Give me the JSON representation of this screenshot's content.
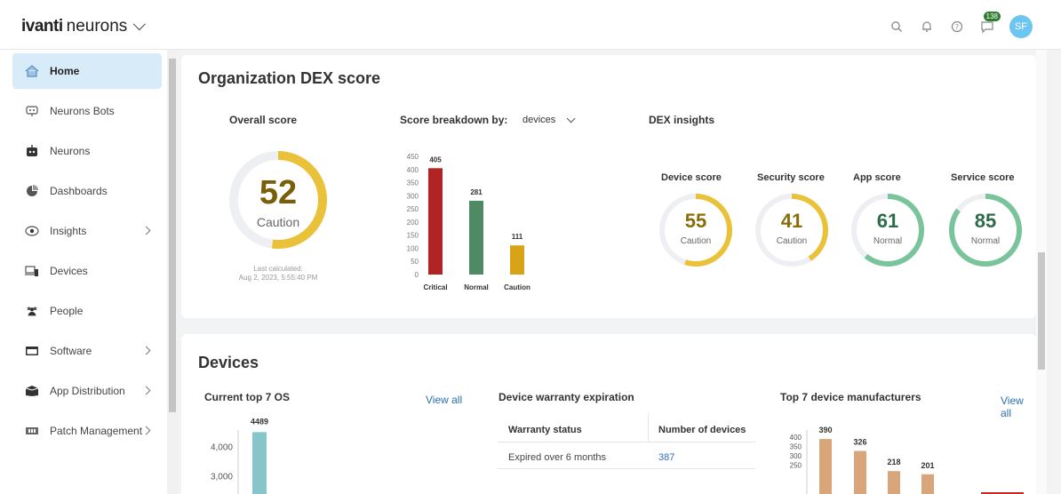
{
  "brand": {
    "bold": "ivanti",
    "rest": "neurons"
  },
  "topbar": {
    "notifications_count": "138",
    "avatar_initials": "SF"
  },
  "sidebar": {
    "items": [
      {
        "label": "Home",
        "icon": "home-icon",
        "active": true
      },
      {
        "label": "Neurons Bots",
        "icon": "bot-icon"
      },
      {
        "label": "Neurons",
        "icon": "robot-icon"
      },
      {
        "label": "Dashboards",
        "icon": "pie-icon"
      },
      {
        "label": "Insights",
        "icon": "eye-icon",
        "expand": true
      },
      {
        "label": "Devices",
        "icon": "devices-icon"
      },
      {
        "label": "People",
        "icon": "people-icon"
      },
      {
        "label": "Software",
        "icon": "software-icon",
        "expand": true
      },
      {
        "label": "App Distribution",
        "icon": "box-icon",
        "expand": true
      },
      {
        "label": "Patch Management",
        "icon": "patch-icon",
        "expand": true
      }
    ]
  },
  "dex": {
    "title": "Organization DEX score",
    "overall": {
      "label": "Overall score",
      "value": "52",
      "status": "Caution",
      "fraction": 0.52,
      "last_calculated_label": "Last calculated:",
      "last_calculated": "Aug 2, 2023, 5:55:40 PM"
    },
    "breakdown": {
      "label": "Score breakdown by:",
      "selected": "devices"
    },
    "insights": {
      "label": "DEX insights",
      "scores": [
        {
          "label": "Device score",
          "value": "55",
          "status": "Caution",
          "fraction": 0.55,
          "color": "#e9c23a",
          "text_color": "#8a6d0b"
        },
        {
          "label": "Security score",
          "value": "41",
          "status": "Caution",
          "fraction": 0.41,
          "color": "#e9c23a",
          "text_color": "#8a6d0b"
        },
        {
          "label": "App score",
          "value": "61",
          "status": "Normal",
          "fraction": 0.61,
          "color": "#79c49a",
          "text_color": "#2e6b49"
        },
        {
          "label": "Service score",
          "value": "85",
          "status": "Normal",
          "fraction": 0.85,
          "color": "#79c49a",
          "text_color": "#2e6b49"
        }
      ]
    }
  },
  "devices": {
    "title": "Devices",
    "top_os": {
      "label": "Current top 7 OS",
      "view_all": "View all"
    },
    "warranty": {
      "label": "Device warranty expiration",
      "headers": [
        "Warranty status",
        "Number of devices"
      ],
      "rows": [
        {
          "status": "Expired over 6 months",
          "count": "387"
        }
      ]
    },
    "manufacturers": {
      "label": "Top 7 device manufacturers",
      "view_all": "View all"
    }
  },
  "chart_data": [
    {
      "type": "bar",
      "categories": [
        "Critical",
        "Normal",
        "Caution"
      ],
      "values": [
        405,
        281,
        111
      ],
      "colors": [
        "#b22424",
        "#4e8a64",
        "#d9a317"
      ],
      "ylim": [
        0,
        450
      ],
      "yticks": [
        0,
        50,
        100,
        150,
        200,
        250,
        300,
        350,
        400,
        450
      ]
    },
    {
      "type": "bar",
      "values": [
        4489
      ],
      "colors": [
        "#86c5c9"
      ],
      "ylim": [
        0,
        5000
      ],
      "yticks": [
        3000,
        4000
      ]
    },
    {
      "type": "bar",
      "values": [
        390,
        326,
        218,
        201
      ],
      "colors": [
        "#d9a57a"
      ],
      "ylim": [
        0,
        450
      ],
      "yticks": [
        250,
        300,
        350,
        400
      ]
    }
  ]
}
